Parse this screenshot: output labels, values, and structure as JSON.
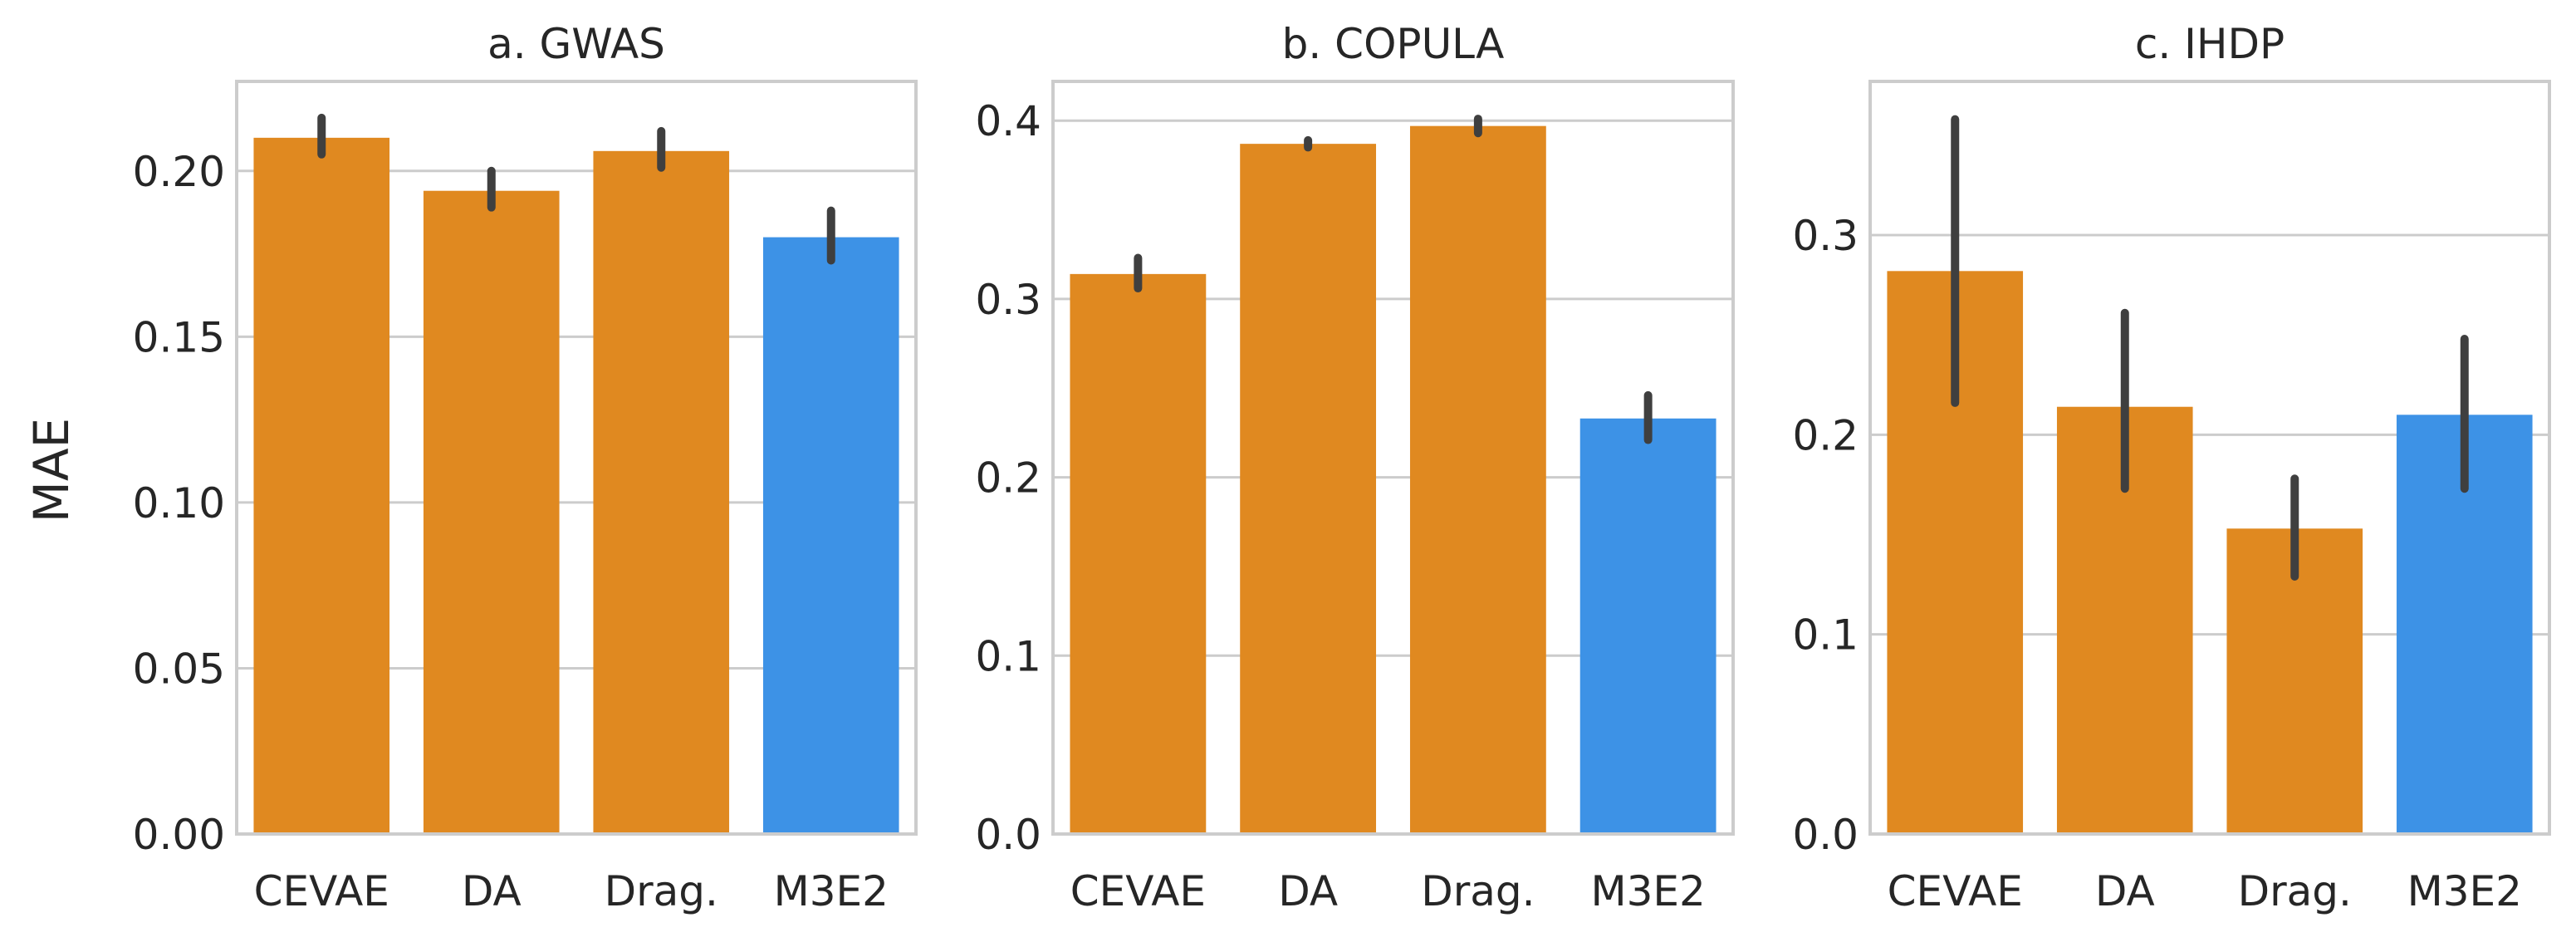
{
  "chart_data": [
    {
      "type": "bar",
      "title": "a. GWAS",
      "ylabel": "MAE",
      "xlabel": "",
      "categories": [
        "CEVAE",
        "DA",
        "Drag.",
        "M3E2"
      ],
      "values": [
        0.21,
        0.194,
        0.206,
        0.18
      ],
      "errors_low": [
        0.205,
        0.189,
        0.201,
        0.173
      ],
      "errors_high": [
        0.216,
        0.2,
        0.212,
        0.188
      ],
      "ylim": [
        0,
        0.227
      ],
      "yticks": [
        0.0,
        0.05,
        0.1,
        0.15,
        0.2
      ],
      "ytick_labels": [
        "0.00",
        "0.05",
        "0.10",
        "0.15",
        "0.20"
      ],
      "colors": [
        "#e08920",
        "#e08920",
        "#e08920",
        "#3d92e6"
      ],
      "grid": true
    },
    {
      "type": "bar",
      "title": "b. COPULA",
      "ylabel": "",
      "xlabel": "",
      "categories": [
        "CEVAE",
        "DA",
        "Drag.",
        "M3E2"
      ],
      "values": [
        0.314,
        0.387,
        0.397,
        0.233
      ],
      "errors_low": [
        0.306,
        0.385,
        0.393,
        0.221
      ],
      "errors_high": [
        0.323,
        0.389,
        0.401,
        0.246
      ],
      "ylim": [
        0,
        0.422
      ],
      "yticks": [
        0.0,
        0.1,
        0.2,
        0.3,
        0.4
      ],
      "ytick_labels": [
        "0.0",
        "0.1",
        "0.2",
        "0.3",
        "0.4"
      ],
      "colors": [
        "#e08920",
        "#e08920",
        "#e08920",
        "#3d92e6"
      ],
      "grid": true
    },
    {
      "type": "bar",
      "title": "c. IHDP",
      "ylabel": "",
      "xlabel": "",
      "categories": [
        "CEVAE",
        "DA",
        "Drag.",
        "M3E2"
      ],
      "values": [
        0.282,
        0.214,
        0.153,
        0.21
      ],
      "errors_low": [
        0.216,
        0.173,
        0.129,
        0.173
      ],
      "errors_high": [
        0.358,
        0.261,
        0.178,
        0.248
      ],
      "ylim": [
        0,
        0.377
      ],
      "yticks": [
        0.0,
        0.1,
        0.2,
        0.3
      ],
      "ytick_labels": [
        "0.0",
        "0.1",
        "0.2",
        "0.3"
      ],
      "colors": [
        "#e08920",
        "#e08920",
        "#e08920",
        "#3d92e6"
      ],
      "grid": true
    }
  ]
}
